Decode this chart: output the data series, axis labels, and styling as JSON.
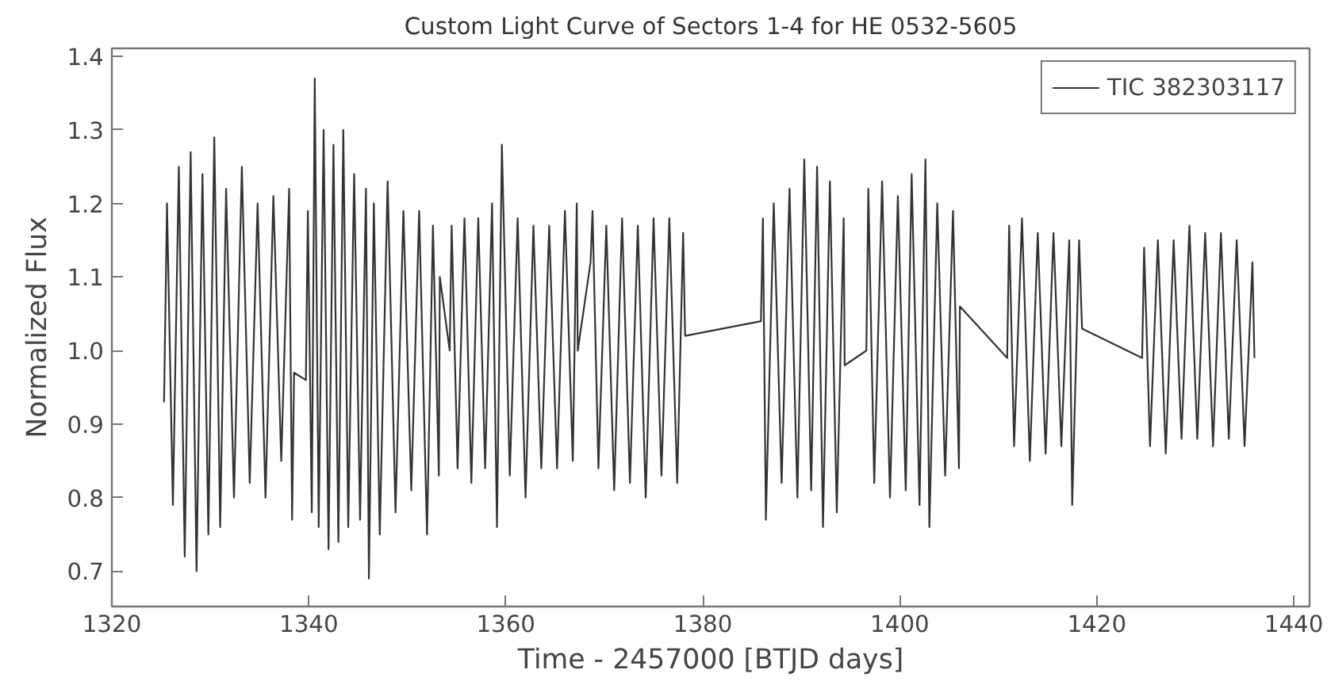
{
  "chart_data": {
    "type": "line",
    "title": "Custom Light Curve of Sectors 1-4 for HE 0532-5605",
    "xlabel": "Time - 2457000 [BTJD days]",
    "ylabel": "Normalized Flux",
    "xlim": [
      1320,
      1441.6
    ],
    "ylim": [
      0.652,
      1.411
    ],
    "xticks": [
      1320,
      1340,
      1360,
      1380,
      1400,
      1420,
      1440
    ],
    "yticks": [
      {
        "value": 0.7,
        "label": "0.7"
      },
      {
        "value": 0.8,
        "label": "0.8"
      },
      {
        "value": 0.9,
        "label": "0.9"
      },
      {
        "value": 1.0,
        "label": "1.0"
      },
      {
        "value": 1.1,
        "label": "1.1"
      },
      {
        "value": 1.2,
        "label": "1.2"
      },
      {
        "value": 1.3,
        "label": "1.3"
      },
      {
        "value": 1.4,
        "label": "1.4"
      }
    ],
    "grid": false,
    "legend": "top right",
    "marker": "none",
    "line_style": "solid",
    "series": [
      {
        "name": "TIC 382303117",
        "color": "#333333",
        "x": [
          1325.3,
          1325.6,
          1326.2,
          1326.8,
          1327.4,
          1328.0,
          1328.6,
          1329.2,
          1329.8,
          1330.4,
          1331.0,
          1331.6,
          1332.4,
          1333.2,
          1334.0,
          1334.8,
          1335.6,
          1336.4,
          1337.2,
          1338.0,
          1338.3,
          1338.5,
          1339.7,
          1339.9,
          1340.3,
          1340.6,
          1341.0,
          1341.5,
          1342.0,
          1342.5,
          1343.0,
          1343.5,
          1344.0,
          1344.6,
          1345.2,
          1345.8,
          1346.1,
          1346.6,
          1347.2,
          1348.0,
          1348.8,
          1349.6,
          1350.4,
          1351.2,
          1352.0,
          1352.6,
          1353.2,
          1353.3,
          1354.3,
          1354.5,
          1355.1,
          1355.8,
          1356.5,
          1357.2,
          1357.9,
          1358.6,
          1359.1,
          1359.6,
          1360.4,
          1361.2,
          1362.0,
          1362.8,
          1363.6,
          1364.4,
          1365.2,
          1366.0,
          1366.8,
          1367.2,
          1367.3,
          1368.6,
          1368.8,
          1369.4,
          1370.2,
          1371.0,
          1371.8,
          1372.6,
          1373.4,
          1374.2,
          1375.0,
          1375.8,
          1376.6,
          1377.4,
          1378.0,
          1378.2,
          1385.9,
          1386.1,
          1386.4,
          1387.2,
          1388.0,
          1388.8,
          1389.6,
          1390.3,
          1391.0,
          1391.6,
          1392.2,
          1392.9,
          1393.6,
          1394.3,
          1394.4,
          1396.6,
          1396.8,
          1397.4,
          1398.2,
          1399.0,
          1399.8,
          1400.6,
          1401.2,
          1402.0,
          1402.6,
          1403.0,
          1403.8,
          1404.6,
          1405.4,
          1406.0,
          1406.1,
          1410.9,
          1411.1,
          1411.6,
          1412.4,
          1413.2,
          1414.0,
          1414.8,
          1415.6,
          1416.4,
          1417.2,
          1417.5,
          1418.2,
          1418.5,
          1424.6,
          1424.8,
          1425.4,
          1426.2,
          1427.0,
          1427.8,
          1428.6,
          1429.4,
          1430.2,
          1431.0,
          1431.8,
          1432.6,
          1433.4,
          1434.2,
          1435.0,
          1435.8,
          1436.0
        ],
        "values": [
          0.93,
          1.2,
          0.79,
          1.25,
          0.72,
          1.27,
          0.7,
          1.24,
          0.75,
          1.29,
          0.76,
          1.22,
          0.8,
          1.25,
          0.82,
          1.2,
          0.8,
          1.21,
          0.85,
          1.22,
          0.77,
          0.97,
          0.96,
          1.19,
          0.78,
          1.37,
          0.76,
          1.3,
          0.73,
          1.28,
          0.74,
          1.3,
          0.76,
          1.24,
          0.77,
          1.22,
          0.69,
          1.2,
          0.75,
          1.23,
          0.78,
          1.19,
          0.81,
          1.19,
          0.75,
          1.17,
          0.83,
          1.1,
          1.0,
          1.17,
          0.84,
          1.18,
          0.82,
          1.18,
          0.84,
          1.2,
          0.76,
          1.28,
          0.83,
          1.18,
          0.8,
          1.17,
          0.84,
          1.17,
          0.84,
          1.19,
          0.85,
          1.2,
          1.0,
          1.12,
          1.19,
          0.84,
          1.17,
          0.81,
          1.18,
          0.82,
          1.17,
          0.8,
          1.18,
          0.83,
          1.18,
          0.82,
          1.16,
          1.02,
          1.04,
          1.18,
          0.77,
          1.2,
          0.82,
          1.22,
          0.8,
          1.26,
          0.81,
          1.25,
          0.76,
          1.23,
          0.78,
          1.18,
          0.98,
          1.0,
          1.22,
          0.82,
          1.23,
          0.8,
          1.21,
          0.81,
          1.24,
          0.79,
          1.26,
          0.76,
          1.2,
          0.83,
          1.19,
          0.84,
          1.06,
          0.99,
          1.17,
          0.87,
          1.18,
          0.85,
          1.16,
          0.86,
          1.16,
          0.87,
          1.15,
          0.79,
          1.15,
          1.03,
          0.99,
          1.14,
          0.87,
          1.15,
          0.86,
          1.15,
          0.88,
          1.17,
          0.88,
          1.16,
          0.87,
          1.16,
          0.88,
          1.15,
          0.87,
          1.12,
          0.99
        ]
      }
    ]
  }
}
